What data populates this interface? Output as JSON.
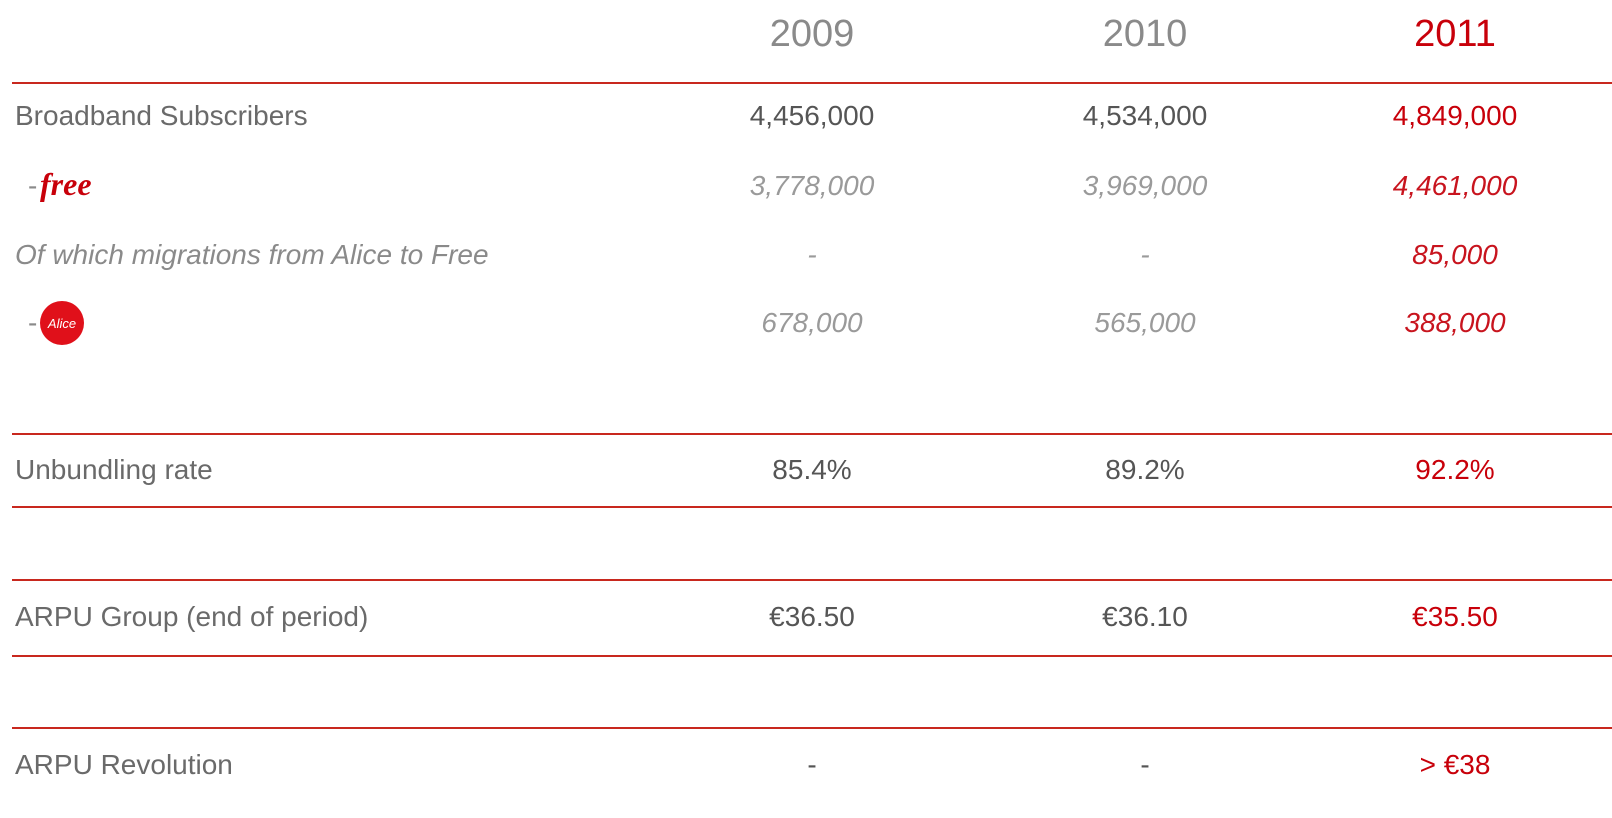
{
  "header": {
    "years": [
      "2009",
      "2010",
      "2011"
    ]
  },
  "rows": [
    {
      "label": "Broadband Subscribers",
      "values": [
        "4,456,000",
        "4,534,000",
        "4,849,000"
      ]
    },
    {
      "prefix": "-",
      "logo": "free",
      "values": [
        "3,778,000",
        "3,969,000",
        "4,461,000"
      ]
    },
    {
      "label": "Of which migrations from Alice to Free",
      "values": [
        "-",
        "-",
        "85,000"
      ]
    },
    {
      "prefix": "-",
      "logo": "Alice",
      "values": [
        "678,000",
        "565,000",
        "388,000"
      ]
    },
    {
      "label": "Unbundling rate",
      "values": [
        "85.4%",
        "89.2%",
        "92.2%"
      ]
    },
    {
      "label": "ARPU Group (end of period)",
      "values": [
        "€36.50",
        "€36.10",
        "€35.50"
      ]
    },
    {
      "label": "ARPU Revolution",
      "values": [
        "-",
        "-",
        "> €38"
      ]
    }
  ]
}
